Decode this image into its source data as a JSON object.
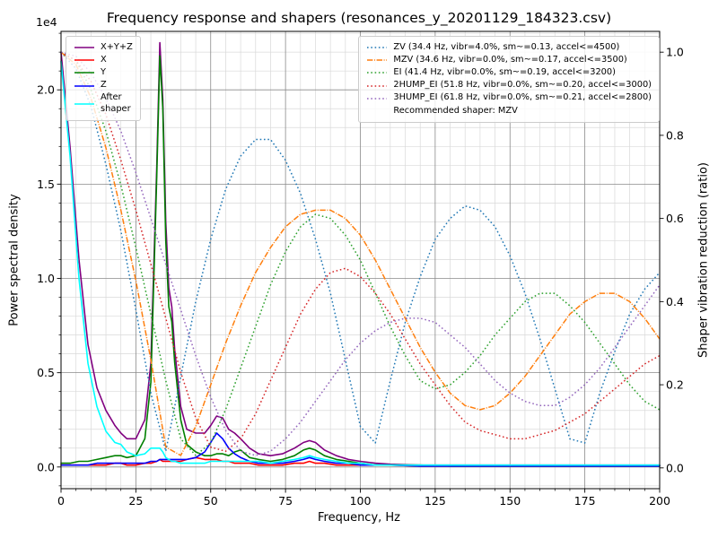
{
  "chart_data": {
    "type": "line",
    "title": "Frequency response and shapers (resonances_y_20201129_184323.csv)",
    "xlabel": "Frequency, Hz",
    "ylabel": "Power spectral density",
    "ylabel_right": "Shaper vibration reduction (ratio)",
    "y_left_multiplier": "1e4",
    "xlim": [
      0,
      200
    ],
    "ylim_left": [
      -0.115,
      2.31
    ],
    "ylim_right": [
      -0.05,
      1.05
    ],
    "xticks": [
      0,
      25,
      50,
      75,
      100,
      125,
      150,
      175,
      200
    ],
    "yticks_left": [
      0,
      0.5,
      1,
      1.5,
      2
    ],
    "ytick_labels_left": [
      "0.0",
      "0.5",
      "1.0",
      "1.5",
      "2.0"
    ],
    "yticks_right": [
      0,
      0.2,
      0.4,
      0.6,
      0.8,
      1
    ],
    "ytick_labels_right": [
      "0.0",
      "0.2",
      "0.4",
      "0.6",
      "0.8",
      "1.0"
    ],
    "grid": {
      "major_color": "#8a8a8a",
      "minor_color": "#d9d9d9",
      "x_minor_step": 5,
      "y_minor_step": 0.1
    },
    "legend_note": "Recommended shaper: MZV",
    "psd_x": [
      0,
      3,
      6,
      9,
      12,
      15,
      18,
      20,
      22,
      25,
      28,
      30,
      32,
      33,
      34,
      35,
      36,
      37,
      38,
      40,
      42,
      45,
      48,
      50,
      52,
      54,
      56,
      58,
      60,
      63,
      66,
      70,
      74,
      78,
      81,
      83,
      85,
      88,
      92,
      96,
      100,
      105,
      110,
      120,
      130,
      140,
      150,
      160,
      170,
      180,
      190,
      200
    ],
    "psd_series": [
      {
        "name": "xyz",
        "label": "X+Y+Z",
        "color": "#800080",
        "style": "solid",
        "axis": "left",
        "values": [
          2.2,
          1.7,
          1.1,
          0.65,
          0.42,
          0.3,
          0.22,
          0.18,
          0.15,
          0.15,
          0.25,
          0.55,
          1.6,
          2.25,
          1.95,
          1.3,
          0.95,
          0.85,
          0.62,
          0.32,
          0.2,
          0.18,
          0.18,
          0.22,
          0.27,
          0.26,
          0.2,
          0.18,
          0.15,
          0.1,
          0.07,
          0.06,
          0.07,
          0.1,
          0.13,
          0.14,
          0.13,
          0.09,
          0.06,
          0.04,
          0.03,
          0.02,
          0.015,
          0.01,
          0.01,
          0.01,
          0.01,
          0.01,
          0.01,
          0.01,
          0.01,
          0.01
        ]
      },
      {
        "name": "x",
        "label": "X",
        "color": "#ff0000",
        "style": "solid",
        "axis": "left",
        "values": [
          0.01,
          0.01,
          0.01,
          0.01,
          0.01,
          0.01,
          0.02,
          0.02,
          0.01,
          0.01,
          0.02,
          0.02,
          0.03,
          0.04,
          0.03,
          0.03,
          0.03,
          0.03,
          0.03,
          0.03,
          0.04,
          0.05,
          0.04,
          0.04,
          0.04,
          0.03,
          0.03,
          0.02,
          0.02,
          0.02,
          0.01,
          0.01,
          0.01,
          0.02,
          0.02,
          0.03,
          0.02,
          0.02,
          0.01,
          0.01,
          0.01,
          0.01,
          0.01,
          0.005,
          0.005,
          0.005,
          0.005,
          0.005,
          0.005,
          0.005,
          0.005,
          0.005
        ]
      },
      {
        "name": "y",
        "label": "Y",
        "color": "#008000",
        "style": "solid",
        "axis": "left",
        "values": [
          0.02,
          0.02,
          0.03,
          0.03,
          0.04,
          0.05,
          0.06,
          0.06,
          0.05,
          0.06,
          0.15,
          0.45,
          1.55,
          2.18,
          1.9,
          1.2,
          0.85,
          0.77,
          0.55,
          0.25,
          0.12,
          0.08,
          0.06,
          0.06,
          0.07,
          0.07,
          0.06,
          0.08,
          0.09,
          0.05,
          0.04,
          0.03,
          0.04,
          0.06,
          0.09,
          0.1,
          0.09,
          0.06,
          0.04,
          0.03,
          0.02,
          0.01,
          0.01,
          0.01,
          0.005,
          0.005,
          0.005,
          0.005,
          0.005,
          0.005,
          0.005,
          0.005
        ]
      },
      {
        "name": "z",
        "label": "Z",
        "color": "#0000ff",
        "style": "solid",
        "axis": "left",
        "values": [
          0.01,
          0.01,
          0.01,
          0.01,
          0.02,
          0.02,
          0.02,
          0.02,
          0.02,
          0.02,
          0.02,
          0.03,
          0.03,
          0.04,
          0.04,
          0.04,
          0.04,
          0.04,
          0.04,
          0.04,
          0.04,
          0.05,
          0.08,
          0.13,
          0.18,
          0.15,
          0.1,
          0.07,
          0.05,
          0.03,
          0.02,
          0.02,
          0.02,
          0.03,
          0.04,
          0.05,
          0.04,
          0.03,
          0.02,
          0.02,
          0.01,
          0.01,
          0.01,
          0.005,
          0.005,
          0.005,
          0.005,
          0.005,
          0.005,
          0.005,
          0.005,
          0.005
        ]
      },
      {
        "name": "after-shaper",
        "label": "After\nshaper",
        "color": "#00ffff",
        "style": "solid",
        "axis": "left",
        "values": [
          2.15,
          1.65,
          1.0,
          0.55,
          0.32,
          0.19,
          0.13,
          0.12,
          0.08,
          0.06,
          0.07,
          0.1,
          0.1,
          0.1,
          0.08,
          0.05,
          0.04,
          0.03,
          0.03,
          0.02,
          0.02,
          0.02,
          0.02,
          0.03,
          0.03,
          0.03,
          0.03,
          0.03,
          0.03,
          0.03,
          0.03,
          0.02,
          0.03,
          0.04,
          0.05,
          0.06,
          0.05,
          0.04,
          0.03,
          0.02,
          0.02,
          0.01,
          0.01,
          0.01,
          0.01,
          0.01,
          0.01,
          0.01,
          0.01,
          0.01,
          0.01,
          0.01
        ]
      }
    ],
    "shaper_x": [
      0,
      5,
      10,
      15,
      20,
      25,
      30,
      35,
      40,
      45,
      50,
      55,
      60,
      65,
      70,
      75,
      80,
      85,
      90,
      95,
      100,
      105,
      110,
      115,
      120,
      125,
      130,
      135,
      140,
      145,
      150,
      155,
      160,
      165,
      170,
      175,
      180,
      185,
      190,
      195,
      200
    ],
    "shaper_series": [
      {
        "name": "ZV",
        "label": "ZV (34.4 Hz, vibr=4.0%, sm~=0.13, accel<=4500)",
        "color": "#1f77b4",
        "style": "dotted",
        "axis": "right",
        "values": [
          1.0,
          0.96,
          0.87,
          0.73,
          0.57,
          0.38,
          0.18,
          0.04,
          0.22,
          0.4,
          0.55,
          0.67,
          0.75,
          0.79,
          0.79,
          0.74,
          0.66,
          0.55,
          0.42,
          0.26,
          0.1,
          0.06,
          0.21,
          0.35,
          0.46,
          0.55,
          0.6,
          0.63,
          0.62,
          0.58,
          0.51,
          0.42,
          0.31,
          0.19,
          0.07,
          0.06,
          0.18,
          0.28,
          0.37,
          0.43,
          0.47
        ]
      },
      {
        "name": "MZV",
        "label": "MZV (34.6 Hz, vibr=0.0%, sm~=0.17, accel<=3500)",
        "color": "#ff7f0e",
        "style": "dashdot",
        "axis": "right",
        "values": [
          1.0,
          0.97,
          0.89,
          0.77,
          0.62,
          0.45,
          0.26,
          0.05,
          0.03,
          0.1,
          0.2,
          0.3,
          0.39,
          0.47,
          0.53,
          0.58,
          0.61,
          0.62,
          0.62,
          0.6,
          0.56,
          0.5,
          0.43,
          0.36,
          0.29,
          0.23,
          0.18,
          0.15,
          0.14,
          0.15,
          0.18,
          0.22,
          0.27,
          0.32,
          0.37,
          0.4,
          0.42,
          0.42,
          0.4,
          0.36,
          0.31
        ]
      },
      {
        "name": "EI",
        "label": "EI (41.4 Hz, vibr=0.0%, sm~=0.19, accel<=3200)",
        "color": "#2ca02c",
        "style": "dotted",
        "axis": "right",
        "values": [
          1.0,
          0.98,
          0.91,
          0.81,
          0.68,
          0.53,
          0.37,
          0.21,
          0.07,
          0.03,
          0.06,
          0.14,
          0.24,
          0.34,
          0.44,
          0.52,
          0.58,
          0.61,
          0.6,
          0.56,
          0.5,
          0.42,
          0.34,
          0.27,
          0.21,
          0.19,
          0.2,
          0.23,
          0.27,
          0.32,
          0.36,
          0.4,
          0.42,
          0.42,
          0.39,
          0.35,
          0.3,
          0.25,
          0.2,
          0.16,
          0.14
        ]
      },
      {
        "name": "2HUMP_EI",
        "label": "2HUMP_EI (51.8 Hz, vibr=0.0%, sm~=0.20, accel<=3000)",
        "color": "#d62728",
        "style": "dotted",
        "axis": "right",
        "values": [
          1.0,
          0.98,
          0.93,
          0.85,
          0.74,
          0.62,
          0.49,
          0.36,
          0.23,
          0.12,
          0.05,
          0.04,
          0.07,
          0.13,
          0.21,
          0.29,
          0.37,
          0.43,
          0.47,
          0.48,
          0.46,
          0.42,
          0.37,
          0.31,
          0.25,
          0.2,
          0.15,
          0.11,
          0.09,
          0.08,
          0.07,
          0.07,
          0.08,
          0.09,
          0.11,
          0.13,
          0.16,
          0.19,
          0.22,
          0.25,
          0.27
        ]
      },
      {
        "name": "3HUMP_EI",
        "label": "3HUMP_EI (61.8 Hz, vibr=0.0%, sm~=0.21, accel<=2800)",
        "color": "#9467bd",
        "style": "dotted",
        "axis": "right",
        "values": [
          1.0,
          0.99,
          0.95,
          0.89,
          0.81,
          0.71,
          0.6,
          0.49,
          0.38,
          0.27,
          0.17,
          0.09,
          0.04,
          0.03,
          0.04,
          0.07,
          0.11,
          0.16,
          0.21,
          0.26,
          0.3,
          0.33,
          0.35,
          0.36,
          0.36,
          0.35,
          0.32,
          0.29,
          0.25,
          0.21,
          0.18,
          0.16,
          0.15,
          0.15,
          0.17,
          0.2,
          0.24,
          0.29,
          0.34,
          0.39,
          0.44
        ]
      }
    ]
  }
}
